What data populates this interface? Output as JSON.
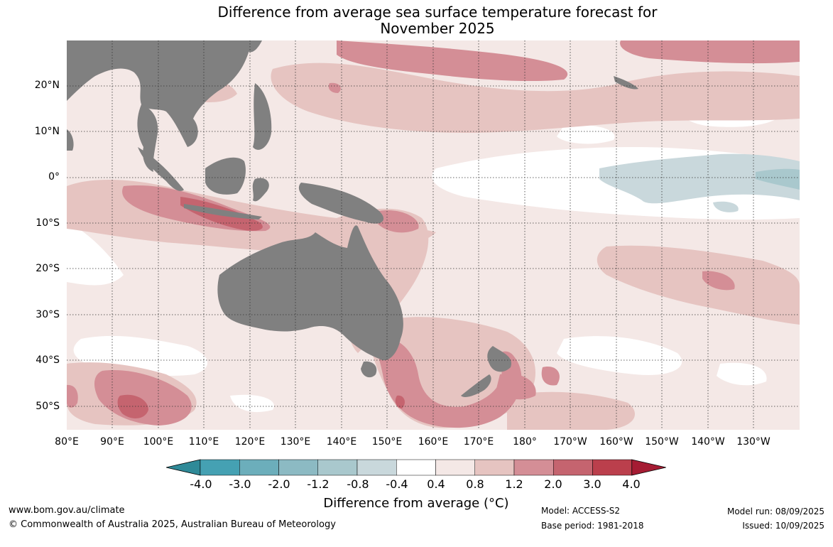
{
  "title": {
    "line1": "Difference from average sea surface temperature forecast for",
    "line2": "November 2025"
  },
  "map": {
    "lat_labels": [
      "20°N",
      "10°N",
      "0°",
      "10°S",
      "20°S",
      "30°S",
      "40°S",
      "50°S"
    ],
    "lon_labels": [
      "80°E",
      "90°E",
      "100°E",
      "110°E",
      "120°E",
      "130°E",
      "140°E",
      "150°E",
      "160°E",
      "170°E",
      "180°",
      "170°W",
      "160°W",
      "150°W",
      "140°W",
      "130°W"
    ],
    "land_color": "#808080",
    "gridlines": "dotted"
  },
  "colorbar": {
    "ticks": [
      "-4.0",
      "-3.0",
      "-2.0",
      "-1.2",
      "-0.8",
      "-0.4",
      "0.4",
      "0.8",
      "1.2",
      "2.0",
      "3.0",
      "4.0"
    ],
    "colors": [
      "#2f8a98",
      "#45a1b3",
      "#6caebb",
      "#8cbac3",
      "#a9c8cd",
      "#c9d8dc",
      "#ffffff",
      "#f4e8e6",
      "#e6c4c1",
      "#d48e96",
      "#c5646f",
      "#bb3f4c",
      "#a51c33"
    ],
    "label": "Difference from average (°C)"
  },
  "footer": {
    "website": "www.bom.gov.au/climate",
    "copyright": "© Commonwealth of Australia 2025, Australian Bureau of Meteorology",
    "model": "Model: ACCESS-S2",
    "base_period": "Base period: 1981-2018",
    "model_run": "Model run: 08/09/2025",
    "issued": "Issued: 10/09/2025"
  }
}
